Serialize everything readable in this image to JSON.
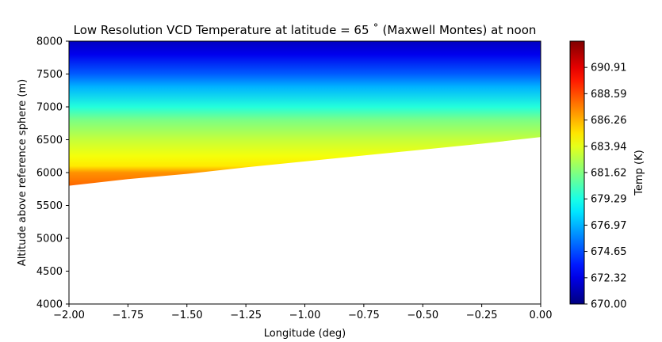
{
  "chart_data": {
    "type": "heatmap",
    "title": "Low Resolution VCD Temperature at latitude = 65 ˚ (Maxwell Montes) at noon",
    "xlabel": "Longitude (deg)",
    "ylabel": "Altitude above reference sphere (m)",
    "xlim": [
      -2.0,
      0.0
    ],
    "ylim": [
      4000,
      8000
    ],
    "x_ticks": [
      "−2.00",
      "−1.75",
      "−1.50",
      "−1.25",
      "−1.00",
      "−0.75",
      "−0.50",
      "−0.25",
      "0.00"
    ],
    "y_ticks": [
      "4000",
      "4500",
      "5000",
      "5500",
      "6000",
      "6500",
      "7000",
      "7500",
      "8000"
    ],
    "grid": false,
    "colormap": "jet",
    "colorbar": {
      "label": "Temp (K)",
      "range": [
        670.0,
        693.23
      ],
      "ticks": [
        "670.00",
        "672.32",
        "674.65",
        "676.97",
        "679.29",
        "681.62",
        "683.94",
        "686.26",
        "688.59",
        "690.91"
      ]
    },
    "surface": {
      "x": [
        -2.0,
        -1.75,
        -1.5,
        -1.25,
        -1.0,
        -0.75,
        -0.5,
        -0.25,
        0.0
      ],
      "altitude": [
        5800,
        5900,
        5980,
        6080,
        6170,
        6260,
        6350,
        6440,
        6540
      ]
    },
    "temperature_profile": [
      {
        "altitude": 5800,
        "temp": 688.0
      },
      {
        "altitude": 6000,
        "temp": 687.0
      },
      {
        "altitude": 6100,
        "temp": 685.0
      },
      {
        "altitude": 6250,
        "temp": 684.3
      },
      {
        "altitude": 6500,
        "temp": 683.2
      },
      {
        "altitude": 6800,
        "temp": 681.5
      },
      {
        "altitude": 7000,
        "temp": 679.5
      },
      {
        "altitude": 7300,
        "temp": 677.0
      },
      {
        "altitude": 7500,
        "temp": 675.0
      },
      {
        "altitude": 7800,
        "temp": 672.5
      },
      {
        "altitude": 8000,
        "temp": 671.5
      }
    ]
  }
}
